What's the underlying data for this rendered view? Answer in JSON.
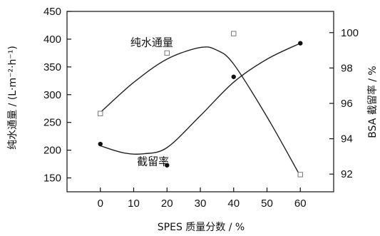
{
  "chart_data": {
    "type": "scatter",
    "x_ticks": [
      0,
      10,
      20,
      30,
      40,
      50,
      60
    ],
    "xlim": [
      -10,
      70
    ],
    "xlabel": "SPES 质量分数 / %",
    "y_left": {
      "label": "纯水通量 / (L·m⁻²·h⁻¹)",
      "ylim": [
        125,
        450
      ],
      "ticks": [
        150,
        200,
        250,
        300,
        350,
        400,
        450
      ]
    },
    "y_right": {
      "label": "BSA 截留率 / %",
      "ylim": [
        91.0,
        101.2
      ],
      "ticks": [
        92,
        94,
        96,
        98,
        100
      ]
    },
    "series": [
      {
        "name": "纯水通量",
        "axis": "left",
        "marker": "open-square",
        "points": [
          {
            "x": 0,
            "y": 266
          },
          {
            "x": 20,
            "y": 375
          },
          {
            "x": 40,
            "y": 410
          },
          {
            "x": 60,
            "y": 156
          }
        ],
        "curve": [
          {
            "x": 0,
            "y": 268
          },
          {
            "x": 10,
            "y": 322
          },
          {
            "x": 20,
            "y": 364
          },
          {
            "x": 30,
            "y": 385
          },
          {
            "x": 35,
            "y": 380
          },
          {
            "x": 40,
            "y": 355
          },
          {
            "x": 50,
            "y": 260
          },
          {
            "x": 60,
            "y": 153
          }
        ]
      },
      {
        "name": "截留率",
        "axis": "right",
        "marker": "filled-circle",
        "points": [
          {
            "x": 0,
            "y": 93.7
          },
          {
            "x": 20,
            "y": 92.5
          },
          {
            "x": 40,
            "y": 97.5
          },
          {
            "x": 60,
            "y": 99.4
          }
        ],
        "curve": [
          {
            "x": 0,
            "y": 93.6
          },
          {
            "x": 7,
            "y": 93.2
          },
          {
            "x": 13,
            "y": 93.15
          },
          {
            "x": 20,
            "y": 93.5
          },
          {
            "x": 30,
            "y": 95.3
          },
          {
            "x": 40,
            "y": 97.2
          },
          {
            "x": 50,
            "y": 98.5
          },
          {
            "x": 60,
            "y": 99.4
          }
        ]
      }
    ],
    "annotations": [
      {
        "text": "纯水通量",
        "x": 9,
        "y": 388,
        "axis": "left"
      },
      {
        "text": "截留率",
        "x": 11,
        "y": 173,
        "axis": "left"
      }
    ]
  }
}
